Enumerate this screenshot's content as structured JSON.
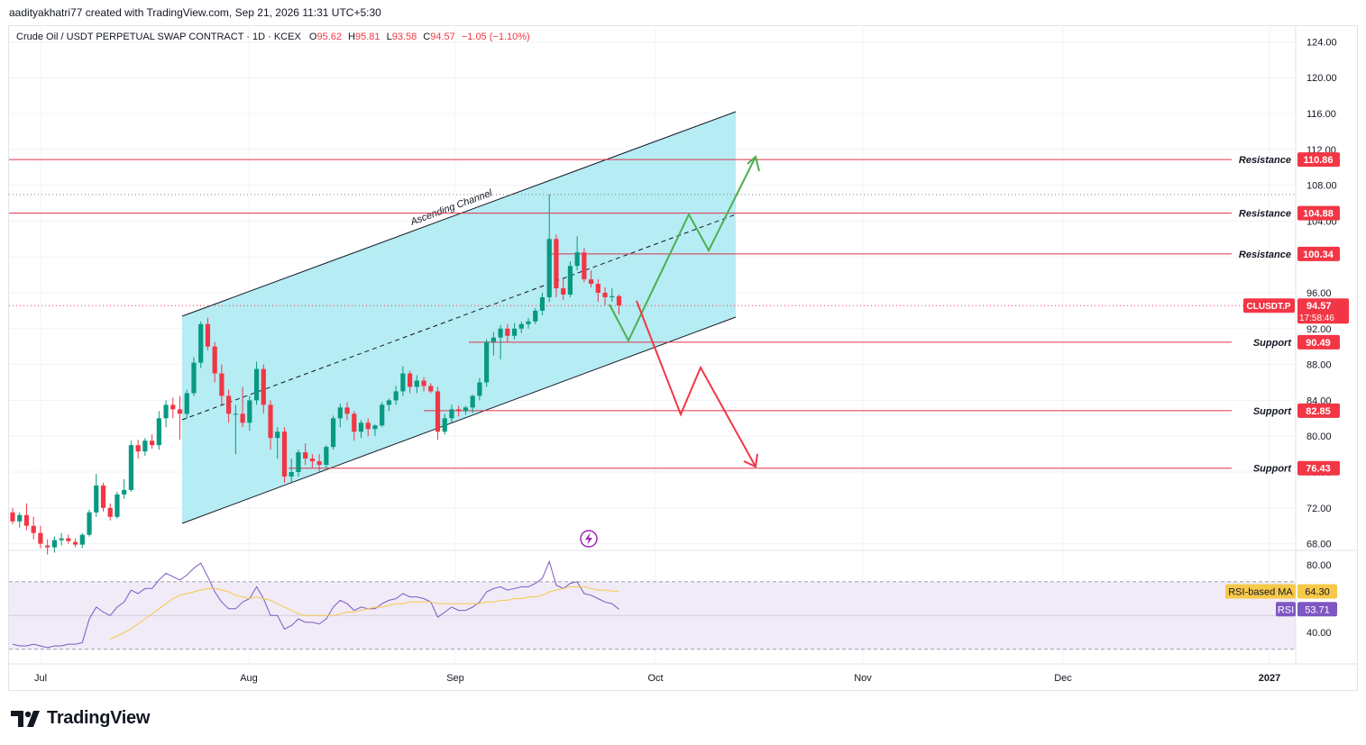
{
  "header": {
    "text": "aadityakhatri77 created with TradingView.com, Sep 21, 2026 11:31 UTC+5:30"
  },
  "legend": {
    "symbol": "Crude Oil / USDT PERPETUAL SWAP CONTRACT · 1D · KCEX",
    "o_label": "O",
    "o_value": "95.62",
    "h_label": "H",
    "h_value": "95.81",
    "l_label": "L",
    "l_value": "93.58",
    "c_label": "C",
    "c_value": "94.57",
    "change": "−1.05 (−1.10%)"
  },
  "footer": {
    "logo_text": "TradingView"
  },
  "colors": {
    "up": "#089981",
    "down": "#f23645",
    "channel_fill": "#b2ebf2",
    "level_line": "#e0314b",
    "forecast_up": "#4caf50",
    "forecast_down": "#f23645",
    "rsi_line": "#7e57c2",
    "rsi_ma": "#f7c948",
    "rsi_band": "#ede7f6"
  },
  "chart_data": {
    "type": "candlestick",
    "price_axis": {
      "ticks": [
        "124.00",
        "120.00",
        "116.00",
        "112.00",
        "108.00",
        "104.00",
        "100.00",
        "96.00",
        "92.00",
        "88.00",
        "84.00",
        "80.00",
        "76.00",
        "72.00",
        "68.00"
      ],
      "ylim": [
        66.5,
        125.5
      ]
    },
    "time_axis": {
      "labels": [
        "Jul",
        "Aug",
        "Sep",
        "Oct",
        "Nov",
        "Dec",
        "2027"
      ]
    },
    "last_price": {
      "symbol": "CLUSDT.P",
      "value": "94.57",
      "countdown": "17:58:46"
    },
    "levels": [
      {
        "kind": "Resistance",
        "value": 110.86,
        "label": "110.86"
      },
      {
        "kind": "Resistance",
        "value": 104.88,
        "label": "104.88"
      },
      {
        "kind": "Resistance",
        "value": 100.34,
        "label": "100.34"
      },
      {
        "kind": "Support",
        "value": 90.49,
        "label": "90.49"
      },
      {
        "kind": "Support",
        "value": 82.85,
        "label": "82.85"
      },
      {
        "kind": "Support",
        "value": 76.43,
        "label": "76.43"
      }
    ],
    "channel_label": "Ascending Channel",
    "candles": [
      [
        71.5,
        72.0,
        70.2,
        70.5
      ],
      [
        70.5,
        71.5,
        69.8,
        71.2
      ],
      [
        71.2,
        72.5,
        69.5,
        70.0
      ],
      [
        70.0,
        71.0,
        68.5,
        69.2
      ],
      [
        69.2,
        70.0,
        67.5,
        68.0
      ],
      [
        67.8,
        68.5,
        66.8,
        67.6
      ],
      [
        67.6,
        68.8,
        67.0,
        68.4
      ],
      [
        68.4,
        69.2,
        67.8,
        68.6
      ],
      [
        68.6,
        69.0,
        68.0,
        68.3
      ],
      [
        68.2,
        68.6,
        67.6,
        67.9
      ],
      [
        67.9,
        69.2,
        67.5,
        69.0
      ],
      [
        69.0,
        71.8,
        68.8,
        71.5
      ],
      [
        71.5,
        75.8,
        71.0,
        74.5
      ],
      [
        74.5,
        74.8,
        71.6,
        72.0
      ],
      [
        72.0,
        72.5,
        70.6,
        71.0
      ],
      [
        71.0,
        73.8,
        70.8,
        73.5
      ],
      [
        73.5,
        75.2,
        73.0,
        74.0
      ],
      [
        74.0,
        79.5,
        73.8,
        79.0
      ],
      [
        79.0,
        79.6,
        77.5,
        78.3
      ],
      [
        78.3,
        79.8,
        77.8,
        79.5
      ],
      [
        79.5,
        80.2,
        78.6,
        79.0
      ],
      [
        79.0,
        82.8,
        78.5,
        82.0
      ],
      [
        82.0,
        84.0,
        81.0,
        83.5
      ],
      [
        83.5,
        84.3,
        82.0,
        83.0
      ],
      [
        83.0,
        84.5,
        79.6,
        82.5
      ],
      [
        82.5,
        85.2,
        82.0,
        84.8
      ],
      [
        84.8,
        88.8,
        84.5,
        88.2
      ],
      [
        88.2,
        92.8,
        87.6,
        92.5
      ],
      [
        92.5,
        93.2,
        89.6,
        90.0
      ],
      [
        90.0,
        90.5,
        86.0,
        87.0
      ],
      [
        87.0,
        88.0,
        83.5,
        84.5
      ],
      [
        84.5,
        85.2,
        81.5,
        82.5
      ],
      [
        82.5,
        83.5,
        78.0,
        82.5
      ],
      [
        82.5,
        85.5,
        81.0,
        81.5
      ],
      [
        81.5,
        84.5,
        80.6,
        84.0
      ],
      [
        84.0,
        88.3,
        83.5,
        87.5
      ],
      [
        87.5,
        88.0,
        82.5,
        83.5
      ],
      [
        83.5,
        84.0,
        78.5,
        79.8
      ],
      [
        79.8,
        81.0,
        77.5,
        80.5
      ],
      [
        80.5,
        81.0,
        74.8,
        75.5
      ],
      [
        75.5,
        77.5,
        74.8,
        76.0
      ],
      [
        76.0,
        78.5,
        75.5,
        78.2
      ],
      [
        78.2,
        79.2,
        76.8,
        77.5
      ],
      [
        77.5,
        78.0,
        76.5,
        77.2
      ],
      [
        77.2,
        78.0,
        76.0,
        76.8
      ],
      [
        76.8,
        79.0,
        76.4,
        78.8
      ],
      [
        78.8,
        82.3,
        78.5,
        82.0
      ],
      [
        82.0,
        83.6,
        81.0,
        83.2
      ],
      [
        83.2,
        83.8,
        81.8,
        82.5
      ],
      [
        82.5,
        82.8,
        79.5,
        80.5
      ],
      [
        80.5,
        81.8,
        79.8,
        81.5
      ],
      [
        81.5,
        82.0,
        80.0,
        80.8
      ],
      [
        80.8,
        81.3,
        80.0,
        81.2
      ],
      [
        81.2,
        83.8,
        81.0,
        83.5
      ],
      [
        83.5,
        84.2,
        82.8,
        84.0
      ],
      [
        84.0,
        85.6,
        83.5,
        85.0
      ],
      [
        85.0,
        87.8,
        84.5,
        87.0
      ],
      [
        87.0,
        87.3,
        84.8,
        85.5
      ],
      [
        85.5,
        86.8,
        84.8,
        86.2
      ],
      [
        86.2,
        86.6,
        85.0,
        85.6
      ],
      [
        85.6,
        85.9,
        84.8,
        85.0
      ],
      [
        85.0,
        85.5,
        79.6,
        80.5
      ],
      [
        80.5,
        82.5,
        80.2,
        82.0
      ],
      [
        82.0,
        83.5,
        81.5,
        83.0
      ],
      [
        83.0,
        83.4,
        82.2,
        82.8
      ],
      [
        82.8,
        83.4,
        82.4,
        83.2
      ],
      [
        83.2,
        84.6,
        82.6,
        84.5
      ],
      [
        84.5,
        86.5,
        84.0,
        86.0
      ],
      [
        86.0,
        90.8,
        85.5,
        90.5
      ],
      [
        90.5,
        91.6,
        89.0,
        91.0
      ],
      [
        91.0,
        92.4,
        88.6,
        92.0
      ],
      [
        92.0,
        92.5,
        90.5,
        91.2
      ],
      [
        91.2,
        92.6,
        90.8,
        92.0
      ],
      [
        92.0,
        92.8,
        91.5,
        92.5
      ],
      [
        92.5,
        93.2,
        92.0,
        92.8
      ],
      [
        92.8,
        94.3,
        92.5,
        94.0
      ],
      [
        94.0,
        96.0,
        93.5,
        95.5
      ],
      [
        95.5,
        107.0,
        95.0,
        102.0
      ],
      [
        102.0,
        102.5,
        95.5,
        96.5
      ],
      [
        96.5,
        97.5,
        95.2,
        95.8
      ],
      [
        95.8,
        99.5,
        95.5,
        99.0
      ],
      [
        99.0,
        102.3,
        98.5,
        100.5
      ],
      [
        100.5,
        101.0,
        97.2,
        97.5
      ],
      [
        97.5,
        98.5,
        96.6,
        97.0
      ],
      [
        97.0,
        97.5,
        95.0,
        96.0
      ],
      [
        96.0,
        96.6,
        94.6,
        95.5
      ],
      [
        95.5,
        96.5,
        95.0,
        95.62
      ],
      [
        95.62,
        95.81,
        93.58,
        94.57
      ]
    ],
    "rsi": {
      "axis_ticks": [
        "80.00",
        "40.00"
      ],
      "ylim": [
        30,
        82
      ],
      "rsi_label": "RSI",
      "rsi_value": "53.71",
      "ma_label": "RSI-based MA",
      "ma_value": "64.30",
      "rsi_values": [
        33,
        32,
        32,
        33,
        32,
        31,
        32,
        32,
        33,
        33,
        34,
        48,
        55,
        52,
        50,
        55,
        58,
        65,
        63,
        66,
        66,
        71,
        75,
        73,
        71,
        74,
        78,
        81,
        73,
        64,
        58,
        54,
        54,
        58,
        60,
        67,
        60,
        50,
        50,
        42,
        44,
        48,
        46,
        46,
        45,
        48,
        55,
        59,
        57,
        53,
        55,
        54,
        54,
        57,
        59,
        60,
        63,
        61,
        61,
        60,
        58,
        49,
        52,
        55,
        53,
        53,
        55,
        58,
        64,
        66,
        67,
        65,
        66,
        67,
        67,
        69,
        72,
        82,
        68,
        66,
        69,
        70,
        63,
        62,
        60,
        58,
        57,
        53.71
      ],
      "ma_values": [
        null,
        null,
        null,
        null,
        null,
        null,
        null,
        null,
        null,
        null,
        null,
        null,
        null,
        null,
        36,
        38,
        40,
        42,
        45,
        48,
        51,
        54,
        57,
        60,
        62,
        63,
        64,
        65,
        66,
        66,
        65,
        64,
        62,
        61,
        60,
        61,
        60,
        59,
        57,
        55,
        53,
        51,
        50,
        50,
        50,
        50,
        50,
        51,
        52,
        52,
        53,
        54,
        55,
        55,
        56,
        57,
        57,
        58,
        58,
        58,
        58,
        57,
        57,
        57,
        57,
        57,
        57,
        57,
        58,
        58,
        59,
        59,
        60,
        60,
        61,
        61,
        62,
        64,
        65,
        66,
        67,
        67,
        67,
        66,
        65,
        65,
        64.5,
        64.3
      ]
    }
  }
}
